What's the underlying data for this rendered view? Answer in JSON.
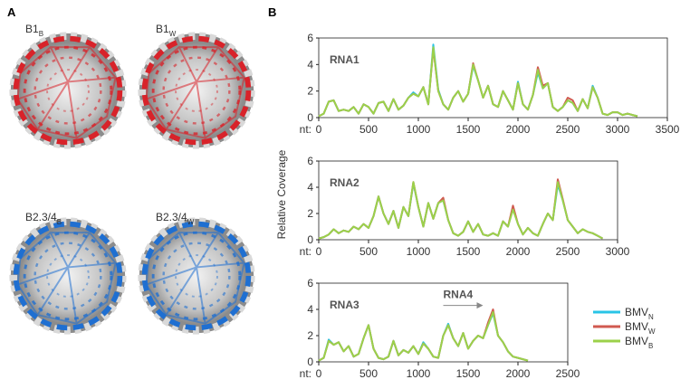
{
  "panel_a": {
    "label": "A",
    "images": [
      {
        "label": "B1",
        "subscript": "B"
      },
      {
        "label": "B1",
        "subscript": "W"
      },
      {
        "label": "B2.3/4",
        "subscript": "B"
      },
      {
        "label": "B2.3/4",
        "subscript": "W"
      }
    ]
  },
  "panel_b": {
    "label": "B",
    "ylabel": "Relative Coverage"
  },
  "chart_data": [
    {
      "type": "line",
      "title": "RNA1",
      "xlabel": "nt:",
      "xlim": [
        0,
        3500
      ],
      "xticks": [
        0,
        500,
        1000,
        1500,
        2000,
        2500,
        3000,
        3500
      ],
      "ylim": [
        0,
        6
      ],
      "yticks": [
        0,
        2,
        4,
        6
      ],
      "x": [
        0,
        50,
        100,
        150,
        200,
        250,
        300,
        350,
        400,
        450,
        500,
        550,
        600,
        650,
        700,
        750,
        800,
        850,
        900,
        950,
        1000,
        1050,
        1100,
        1150,
        1200,
        1250,
        1300,
        1350,
        1400,
        1450,
        1500,
        1550,
        1600,
        1650,
        1700,
        1750,
        1800,
        1850,
        1900,
        1950,
        2000,
        2050,
        2100,
        2150,
        2200,
        2250,
        2300,
        2350,
        2400,
        2450,
        2500,
        2550,
        2600,
        2650,
        2700,
        2750,
        2800,
        2850,
        2900,
        2950,
        3000,
        3050,
        3100,
        3150,
        3200
      ],
      "series": [
        {
          "color": "#29c4e6",
          "values": [
            0.1,
            0.3,
            1.2,
            1.3,
            0.5,
            0.6,
            0.5,
            0.8,
            0.3,
            1.0,
            0.8,
            0.3,
            1.1,
            1.2,
            0.5,
            1.4,
            0.6,
            0.9,
            1.5,
            1.9,
            1.6,
            2.3,
            1.0,
            5.5,
            2.1,
            1.0,
            0.6,
            1.5,
            2.0,
            1.2,
            1.8,
            3.9,
            2.8,
            1.5,
            2.4,
            1.0,
            0.8,
            2.0,
            1.3,
            0.6,
            2.7,
            1.0,
            0.6,
            1.7,
            3.4,
            2.2,
            2.6,
            0.8,
            0.5,
            0.8,
            1.3,
            1.1,
            0.5,
            1.4,
            0.7,
            2.4,
            1.5,
            0.3,
            0.2,
            0.4,
            0.4,
            0.2,
            0.3,
            0.2,
            0.1
          ]
        },
        {
          "color": "#d05a50",
          "values": [
            0.1,
            0.3,
            1.2,
            1.3,
            0.5,
            0.6,
            0.5,
            0.8,
            0.3,
            1.0,
            0.8,
            0.3,
            1.1,
            1.2,
            0.5,
            1.4,
            0.6,
            0.9,
            1.5,
            1.8,
            1.6,
            2.3,
            1.0,
            5.2,
            2.0,
            1.0,
            0.6,
            1.5,
            2.0,
            1.2,
            1.8,
            4.1,
            2.8,
            1.5,
            2.4,
            1.0,
            0.8,
            2.0,
            1.3,
            0.6,
            2.6,
            1.0,
            0.6,
            1.7,
            3.8,
            2.4,
            2.6,
            0.8,
            0.5,
            0.8,
            1.5,
            1.3,
            0.5,
            1.4,
            0.7,
            2.3,
            1.5,
            0.3,
            0.2,
            0.4,
            0.4,
            0.2,
            0.3,
            0.2,
            0.1
          ]
        },
        {
          "color": "#9bd14a",
          "values": [
            0.1,
            0.3,
            1.2,
            1.3,
            0.5,
            0.6,
            0.5,
            0.8,
            0.3,
            1.0,
            0.8,
            0.3,
            1.1,
            1.2,
            0.5,
            1.4,
            0.6,
            0.9,
            1.5,
            1.8,
            1.6,
            2.3,
            1.0,
            5.3,
            2.0,
            1.0,
            0.6,
            1.5,
            2.0,
            1.2,
            1.8,
            4.0,
            2.8,
            1.5,
            2.4,
            1.0,
            0.8,
            2.0,
            1.3,
            0.6,
            2.6,
            1.0,
            0.6,
            1.7,
            3.6,
            2.2,
            2.6,
            0.8,
            0.5,
            0.8,
            1.3,
            1.1,
            0.5,
            1.4,
            0.7,
            2.3,
            1.5,
            0.3,
            0.2,
            0.4,
            0.4,
            0.2,
            0.3,
            0.2,
            0.1
          ]
        }
      ]
    },
    {
      "type": "line",
      "title": "RNA2",
      "xlabel": "nt:",
      "xlim": [
        0,
        3000
      ],
      "xticks": [
        0,
        500,
        1000,
        1500,
        2000,
        2500,
        3000
      ],
      "ylim": [
        0,
        6
      ],
      "yticks": [
        0,
        2,
        4,
        6
      ],
      "x": [
        0,
        50,
        100,
        150,
        200,
        250,
        300,
        350,
        400,
        450,
        500,
        550,
        600,
        650,
        700,
        750,
        800,
        850,
        900,
        950,
        1000,
        1050,
        1100,
        1150,
        1200,
        1250,
        1300,
        1350,
        1400,
        1450,
        1500,
        1550,
        1600,
        1650,
        1700,
        1750,
        1800,
        1850,
        1900,
        1950,
        2000,
        2050,
        2100,
        2150,
        2200,
        2250,
        2300,
        2350,
        2400,
        2450,
        2500,
        2550,
        2600,
        2650,
        2700,
        2750,
        2800,
        2850
      ],
      "series": [
        {
          "color": "#29c4e6",
          "values": [
            0.1,
            0.2,
            0.4,
            0.8,
            0.5,
            0.7,
            0.6,
            1.0,
            0.8,
            1.2,
            0.9,
            1.8,
            3.3,
            2.0,
            1.2,
            2.2,
            0.9,
            2.5,
            1.8,
            4.3,
            2.5,
            1.0,
            2.8,
            1.6,
            2.8,
            3.0,
            1.5,
            0.5,
            0.3,
            0.6,
            1.4,
            0.6,
            1.2,
            0.4,
            0.3,
            0.5,
            0.3,
            1.4,
            1.0,
            2.4,
            1.2,
            0.4,
            0.9,
            0.5,
            0.3,
            1.2,
            2.0,
            1.5,
            4.2,
            3.0,
            1.5,
            1.0,
            0.5,
            0.8,
            0.6,
            0.5,
            0.3,
            0.1
          ]
        },
        {
          "color": "#d05a50",
          "values": [
            0.1,
            0.2,
            0.4,
            0.8,
            0.5,
            0.7,
            0.6,
            1.0,
            0.8,
            1.2,
            0.9,
            1.8,
            3.3,
            2.0,
            1.2,
            2.2,
            0.9,
            2.5,
            1.8,
            4.4,
            2.5,
            1.0,
            2.8,
            1.6,
            2.8,
            3.2,
            1.5,
            0.5,
            0.3,
            0.6,
            1.4,
            0.6,
            1.2,
            0.4,
            0.3,
            0.5,
            0.3,
            1.4,
            1.0,
            2.6,
            1.2,
            0.4,
            0.9,
            0.5,
            0.3,
            1.2,
            2.0,
            1.5,
            4.6,
            3.1,
            1.5,
            1.0,
            0.5,
            0.8,
            0.6,
            0.5,
            0.3,
            0.1
          ]
        },
        {
          "color": "#9bd14a",
          "values": [
            0.1,
            0.2,
            0.4,
            0.8,
            0.5,
            0.7,
            0.6,
            1.0,
            0.8,
            1.2,
            0.9,
            1.8,
            3.3,
            2.0,
            1.2,
            2.2,
            0.9,
            2.5,
            1.8,
            4.4,
            2.5,
            1.0,
            2.8,
            1.6,
            2.8,
            3.0,
            1.5,
            0.5,
            0.3,
            0.6,
            1.4,
            0.6,
            1.2,
            0.4,
            0.3,
            0.5,
            0.3,
            1.4,
            1.0,
            2.3,
            1.2,
            0.4,
            0.9,
            0.5,
            0.3,
            1.2,
            2.0,
            1.5,
            4.4,
            3.0,
            1.5,
            1.0,
            0.5,
            0.8,
            0.6,
            0.5,
            0.3,
            0.1
          ]
        }
      ]
    },
    {
      "type": "line",
      "title": "RNA3",
      "xlabel": "nt:",
      "xlim": [
        0,
        2500
      ],
      "xticks": [
        0,
        500,
        1000,
        1500,
        2000,
        2500
      ],
      "ylim": [
        0,
        6
      ],
      "yticks": [
        0,
        2,
        4,
        6
      ],
      "annotation": {
        "text": "RNA4",
        "arrow": [
          1250,
          1650
        ],
        "arrow_y": 4.3
      },
      "x": [
        0,
        50,
        100,
        150,
        200,
        250,
        300,
        350,
        400,
        450,
        500,
        550,
        600,
        650,
        700,
        750,
        800,
        850,
        900,
        950,
        1000,
        1050,
        1100,
        1150,
        1200,
        1250,
        1300,
        1350,
        1400,
        1450,
        1500,
        1550,
        1600,
        1650,
        1700,
        1750,
        1800,
        1850,
        1900,
        1950,
        2000,
        2050,
        2100
      ],
      "series": [
        {
          "name": "BMV",
          "subscript": "N",
          "color": "#29c4e6",
          "values": [
            0.1,
            0.3,
            1.7,
            1.3,
            1.5,
            0.8,
            1.2,
            0.4,
            0.6,
            1.8,
            2.8,
            1.0,
            0.3,
            0.2,
            0.4,
            1.6,
            0.5,
            0.9,
            0.7,
            1.2,
            0.6,
            1.5,
            1.0,
            0.4,
            0.3,
            2.0,
            2.9,
            1.8,
            1.2,
            2.2,
            1.0,
            1.6,
            2.0,
            1.8,
            2.8,
            3.7,
            2.0,
            1.5,
            0.8,
            0.4,
            0.3,
            0.2,
            0.1
          ]
        },
        {
          "name": "BMV",
          "subscript": "W",
          "color": "#d05a50",
          "values": [
            0.1,
            0.3,
            1.6,
            1.3,
            1.5,
            0.8,
            1.2,
            0.4,
            0.6,
            1.8,
            2.8,
            1.0,
            0.3,
            0.2,
            0.4,
            1.6,
            0.5,
            0.9,
            0.7,
            1.2,
            0.6,
            1.4,
            1.0,
            0.4,
            0.3,
            2.0,
            2.8,
            1.8,
            1.2,
            2.2,
            1.0,
            1.6,
            2.0,
            1.8,
            3.0,
            4.0,
            2.0,
            1.5,
            0.8,
            0.4,
            0.3,
            0.2,
            0.1
          ]
        },
        {
          "name": "BMV",
          "subscript": "B",
          "color": "#9bd14a",
          "values": [
            0.1,
            0.3,
            1.6,
            1.3,
            1.5,
            0.8,
            1.2,
            0.4,
            0.6,
            1.8,
            2.8,
            1.0,
            0.3,
            0.2,
            0.4,
            1.6,
            0.5,
            0.9,
            0.7,
            1.2,
            0.6,
            1.4,
            1.0,
            0.4,
            0.3,
            2.0,
            2.8,
            1.8,
            1.2,
            2.2,
            1.0,
            1.6,
            2.0,
            1.8,
            2.8,
            3.8,
            2.0,
            1.5,
            0.8,
            0.4,
            0.3,
            0.2,
            0.1
          ]
        }
      ]
    }
  ]
}
